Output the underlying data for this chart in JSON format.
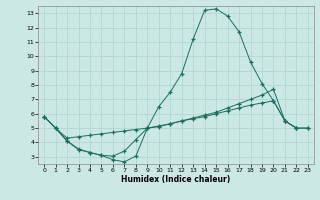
{
  "xlabel": "Humidex (Indice chaleur)",
  "background_color": "#cce8e4",
  "grid_color": "#aad4cc",
  "line_color": "#1a6e60",
  "xlim": [
    -0.5,
    23.5
  ],
  "ylim": [
    2.5,
    13.5
  ],
  "xticks": [
    0,
    1,
    2,
    3,
    4,
    5,
    6,
    7,
    8,
    9,
    10,
    11,
    12,
    13,
    14,
    15,
    16,
    17,
    18,
    19,
    20,
    21,
    22,
    23
  ],
  "yticks": [
    3,
    4,
    5,
    6,
    7,
    8,
    9,
    10,
    11,
    12,
    13
  ],
  "curve1_x": [
    0,
    1,
    2,
    3,
    4,
    5,
    6,
    7,
    8,
    9,
    10,
    11,
    12,
    13,
    14,
    15,
    16,
    17,
    18,
    19,
    20,
    21,
    22
  ],
  "curve1_y": [
    5.8,
    5.0,
    4.1,
    3.5,
    3.3,
    3.1,
    2.8,
    2.65,
    3.05,
    5.0,
    6.5,
    7.5,
    8.8,
    11.2,
    13.2,
    13.3,
    12.8,
    11.7,
    9.6,
    8.1,
    6.9,
    5.5,
    5.0
  ],
  "curve2_x": [
    0,
    1,
    2,
    3,
    4,
    5,
    6,
    7,
    8,
    9,
    10,
    11,
    12,
    13,
    14,
    15,
    16,
    17,
    18,
    19,
    20,
    21,
    22,
    23
  ],
  "curve2_y": [
    5.8,
    5.0,
    4.3,
    4.4,
    4.5,
    4.6,
    4.7,
    4.8,
    4.9,
    5.0,
    5.1,
    5.3,
    5.5,
    5.7,
    5.9,
    6.1,
    6.4,
    6.7,
    7.0,
    7.3,
    7.7,
    5.5,
    5.0,
    5.0
  ],
  "curve3_x": [
    0,
    1,
    2,
    3,
    4,
    5,
    6,
    7,
    8,
    9,
    10,
    11,
    12,
    13,
    14,
    15,
    16,
    17,
    18,
    19,
    20,
    21,
    22,
    23
  ],
  "curve3_y": [
    5.8,
    5.0,
    4.1,
    3.55,
    3.3,
    3.1,
    3.05,
    3.4,
    4.2,
    5.0,
    5.15,
    5.3,
    5.5,
    5.65,
    5.8,
    6.0,
    6.2,
    6.4,
    6.6,
    6.75,
    6.9,
    5.5,
    5.0,
    5.0
  ]
}
